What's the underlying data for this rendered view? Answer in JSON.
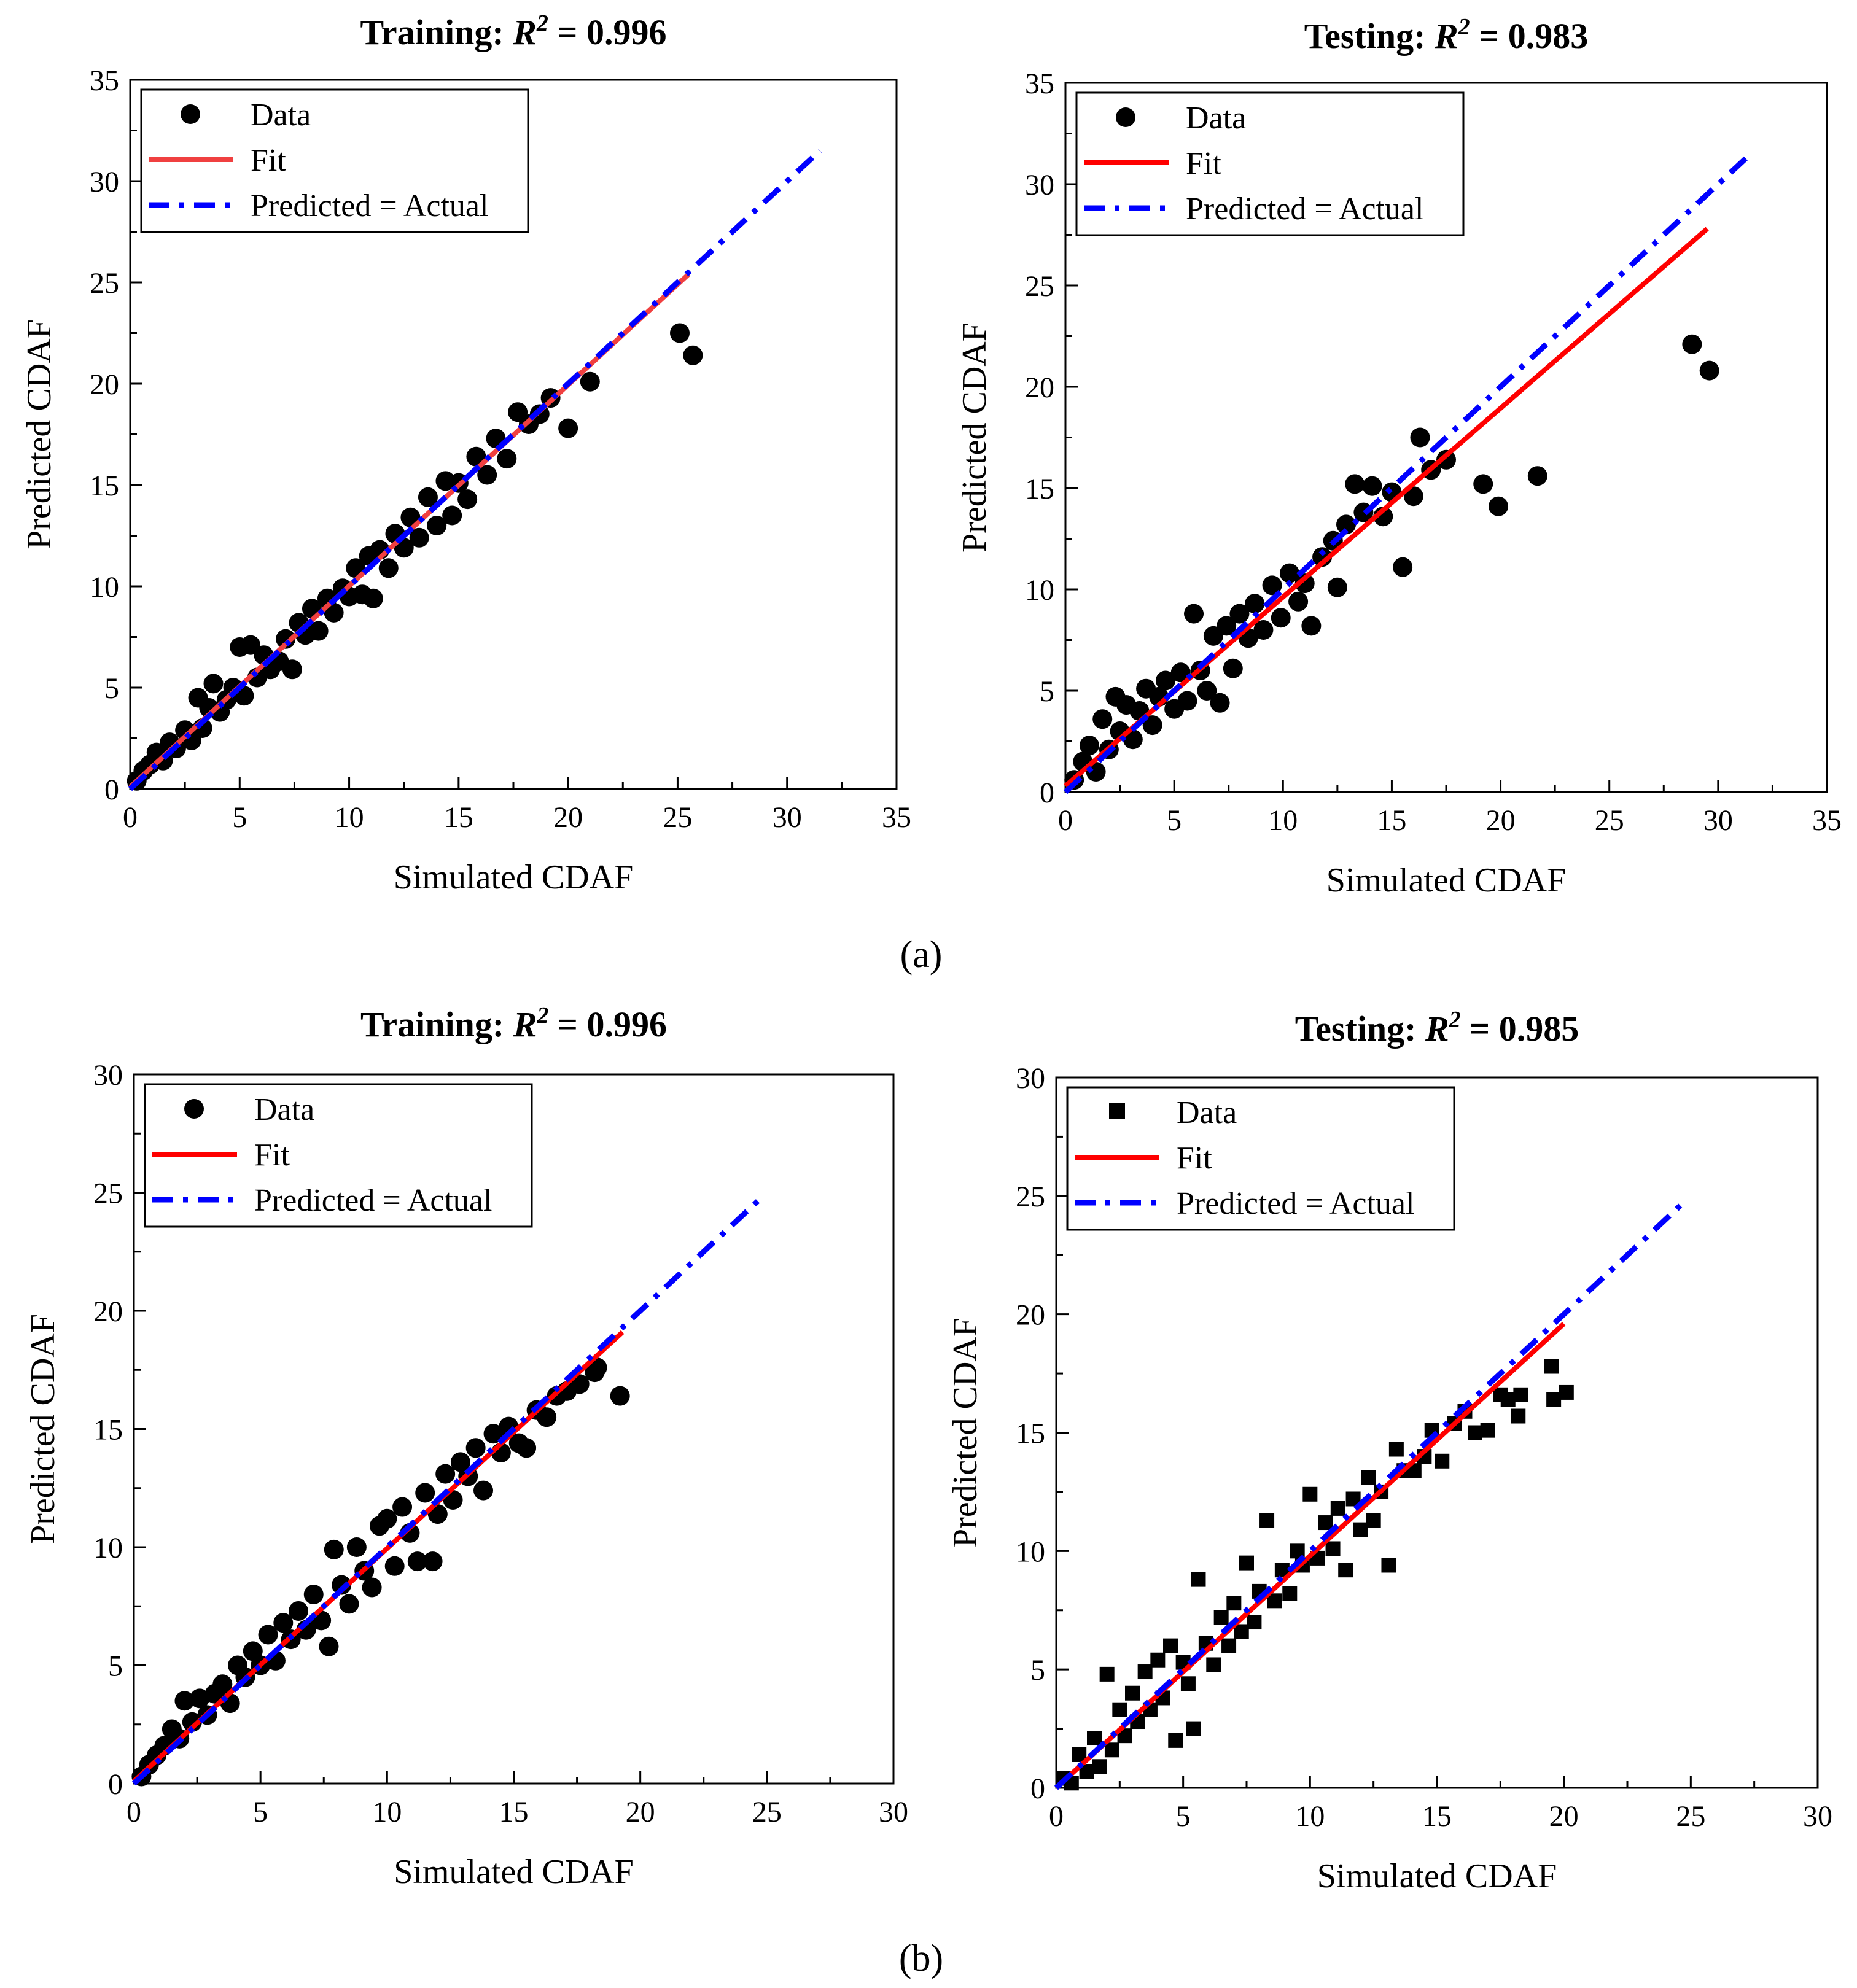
{
  "figure": {
    "panel_labels": [
      "(a)",
      "(b)"
    ],
    "colors": {
      "data": "#000000",
      "fit": "#ff0000",
      "fit_light": "#f04040",
      "ideal": "#0000ff",
      "axis": "#000000"
    }
  },
  "chart_data": [
    {
      "type": "scatter",
      "panel": "a",
      "title_prefix": "Training: ",
      "title_r": "R",
      "title_sup": "2",
      "title_value": " = 0.996",
      "xlabel": "Simulated CDAF",
      "ylabel": "Predicted CDAF",
      "xlim": [
        0,
        35
      ],
      "ylim": [
        0,
        35
      ],
      "xticks": [
        0,
        5,
        10,
        15,
        20,
        25,
        30,
        35
      ],
      "yticks": [
        0,
        5,
        10,
        15,
        20,
        25,
        30,
        35
      ],
      "marker": "circle",
      "legend": {
        "position": "top-left",
        "entries": [
          "Data",
          "Fit",
          "Predicted = Actual"
        ]
      },
      "fit_line": {
        "x": [
          0,
          25.5
        ],
        "y": [
          0.1,
          25.4
        ]
      },
      "ideal_line": {
        "x": [
          0,
          31.5
        ],
        "y": [
          0,
          31.5
        ]
      },
      "points": [
        [
          0.3,
          0.4
        ],
        [
          0.6,
          0.9
        ],
        [
          0.9,
          1.2
        ],
        [
          1.2,
          1.8
        ],
        [
          1.5,
          1.4
        ],
        [
          1.8,
          2.3
        ],
        [
          2.1,
          2.0
        ],
        [
          2.5,
          2.9
        ],
        [
          2.8,
          2.4
        ],
        [
          3.1,
          4.5
        ],
        [
          3.3,
          3.0
        ],
        [
          3.6,
          4.0
        ],
        [
          3.8,
          5.2
        ],
        [
          4.1,
          3.8
        ],
        [
          4.4,
          4.4
        ],
        [
          4.7,
          5.0
        ],
        [
          5.0,
          7.0
        ],
        [
          5.2,
          4.6
        ],
        [
          5.5,
          7.1
        ],
        [
          5.8,
          5.5
        ],
        [
          6.1,
          6.6
        ],
        [
          6.4,
          5.9
        ],
        [
          6.8,
          6.3
        ],
        [
          7.1,
          7.4
        ],
        [
          7.4,
          5.9
        ],
        [
          7.7,
          8.2
        ],
        [
          8.0,
          7.6
        ],
        [
          8.3,
          8.9
        ],
        [
          8.6,
          7.8
        ],
        [
          9.0,
          9.4
        ],
        [
          9.3,
          8.7
        ],
        [
          9.7,
          9.9
        ],
        [
          10.0,
          9.5
        ],
        [
          10.3,
          10.9
        ],
        [
          10.6,
          9.6
        ],
        [
          10.9,
          11.5
        ],
        [
          11.1,
          9.4
        ],
        [
          11.4,
          11.8
        ],
        [
          11.8,
          10.9
        ],
        [
          12.1,
          12.6
        ],
        [
          12.5,
          11.9
        ],
        [
          12.8,
          13.4
        ],
        [
          13.2,
          12.4
        ],
        [
          13.6,
          14.4
        ],
        [
          14.0,
          13.0
        ],
        [
          14.4,
          15.2
        ],
        [
          14.7,
          13.5
        ],
        [
          15.0,
          15.1
        ],
        [
          15.4,
          14.3
        ],
        [
          15.8,
          16.4
        ],
        [
          16.3,
          15.5
        ],
        [
          16.7,
          17.3
        ],
        [
          17.2,
          16.3
        ],
        [
          17.7,
          18.6
        ],
        [
          18.2,
          18.0
        ],
        [
          18.7,
          18.5
        ],
        [
          19.2,
          19.3
        ],
        [
          20.0,
          17.8
        ],
        [
          21.0,
          20.1
        ],
        [
          25.1,
          22.5
        ],
        [
          25.7,
          21.4
        ]
      ]
    },
    {
      "type": "scatter",
      "panel": "a",
      "title_prefix": "Testing: ",
      "title_r": "R",
      "title_sup": "2",
      "title_value": " = 0.983",
      "xlabel": "Simulated CDAF",
      "ylabel": "Predicted CDAF",
      "xlim": [
        0,
        35
      ],
      "ylim": [
        0,
        35
      ],
      "xticks": [
        0,
        5,
        10,
        15,
        20,
        25,
        30,
        35
      ],
      "yticks": [
        0,
        5,
        10,
        15,
        20,
        25,
        30,
        35
      ],
      "marker": "circle",
      "legend": {
        "position": "top-left",
        "entries": [
          "Data",
          "Fit",
          "Predicted = Actual"
        ]
      },
      "fit_line": {
        "x": [
          0,
          29.5
        ],
        "y": [
          0.3,
          27.8
        ]
      },
      "ideal_line": {
        "x": [
          0,
          31.5
        ],
        "y": [
          0,
          31.5
        ]
      },
      "points": [
        [
          0.4,
          0.6
        ],
        [
          0.8,
          1.5
        ],
        [
          1.1,
          2.3
        ],
        [
          1.4,
          1.0
        ],
        [
          1.7,
          3.6
        ],
        [
          2.0,
          2.1
        ],
        [
          2.3,
          4.7
        ],
        [
          2.5,
          3.0
        ],
        [
          2.8,
          4.3
        ],
        [
          3.1,
          2.6
        ],
        [
          3.4,
          4.0
        ],
        [
          3.7,
          5.1
        ],
        [
          4.0,
          3.3
        ],
        [
          4.3,
          4.7
        ],
        [
          4.6,
          5.5
        ],
        [
          5.0,
          4.1
        ],
        [
          5.3,
          5.9
        ],
        [
          5.6,
          4.5
        ],
        [
          5.9,
          8.8
        ],
        [
          6.2,
          6.0
        ],
        [
          6.5,
          5.0
        ],
        [
          6.8,
          7.7
        ],
        [
          7.1,
          4.4
        ],
        [
          7.4,
          8.2
        ],
        [
          7.7,
          6.1
        ],
        [
          8.0,
          8.8
        ],
        [
          8.4,
          7.6
        ],
        [
          8.7,
          9.3
        ],
        [
          9.1,
          8.0
        ],
        [
          9.5,
          10.2
        ],
        [
          9.9,
          8.6
        ],
        [
          10.3,
          10.8
        ],
        [
          10.7,
          9.4
        ],
        [
          11.0,
          10.3
        ],
        [
          11.3,
          8.2
        ],
        [
          11.8,
          11.6
        ],
        [
          12.3,
          12.4
        ],
        [
          12.5,
          10.1
        ],
        [
          12.9,
          13.2
        ],
        [
          13.3,
          15.2
        ],
        [
          13.7,
          13.8
        ],
        [
          14.1,
          15.1
        ],
        [
          14.6,
          13.6
        ],
        [
          15.0,
          14.8
        ],
        [
          15.5,
          11.1
        ],
        [
          16.0,
          14.6
        ],
        [
          16.3,
          17.5
        ],
        [
          16.8,
          15.9
        ],
        [
          17.5,
          16.4
        ],
        [
          19.2,
          15.2
        ],
        [
          19.9,
          14.1
        ],
        [
          21.7,
          15.6
        ],
        [
          28.8,
          22.1
        ],
        [
          29.6,
          20.8
        ]
      ]
    },
    {
      "type": "scatter",
      "panel": "b",
      "title_prefix": "Training: ",
      "title_r": "R",
      "title_sup": "2",
      "title_value": " = 0.996",
      "xlabel": "Simulated CDAF",
      "ylabel": "Predicted CDAF",
      "xlim": [
        0,
        30
      ],
      "ylim": [
        0,
        30
      ],
      "xticks": [
        0,
        5,
        10,
        15,
        20,
        25,
        30
      ],
      "yticks": [
        0,
        5,
        10,
        15,
        20,
        25,
        30
      ],
      "marker": "circle",
      "legend": {
        "position": "top-left",
        "entries": [
          "Data",
          "Fit",
          "Predicted = Actual"
        ]
      },
      "fit_line": {
        "x": [
          0,
          19.3
        ],
        "y": [
          0.1,
          19.1
        ]
      },
      "ideal_line": {
        "x": [
          0,
          24.8
        ],
        "y": [
          0,
          24.8
        ]
      },
      "points": [
        [
          0.3,
          0.3
        ],
        [
          0.6,
          0.8
        ],
        [
          0.9,
          1.2
        ],
        [
          1.2,
          1.6
        ],
        [
          1.5,
          2.3
        ],
        [
          1.8,
          1.9
        ],
        [
          2.0,
          3.5
        ],
        [
          2.3,
          2.6
        ],
        [
          2.6,
          3.6
        ],
        [
          2.9,
          2.9
        ],
        [
          3.2,
          3.8
        ],
        [
          3.5,
          4.2
        ],
        [
          3.8,
          3.4
        ],
        [
          4.1,
          5.0
        ],
        [
          4.4,
          4.5
        ],
        [
          4.7,
          5.6
        ],
        [
          5.0,
          5.0
        ],
        [
          5.3,
          6.3
        ],
        [
          5.6,
          5.2
        ],
        [
          5.9,
          6.8
        ],
        [
          6.2,
          6.1
        ],
        [
          6.5,
          7.3
        ],
        [
          6.8,
          6.5
        ],
        [
          7.1,
          8.0
        ],
        [
          7.4,
          6.9
        ],
        [
          7.7,
          5.8
        ],
        [
          7.9,
          9.9
        ],
        [
          8.2,
          8.4
        ],
        [
          8.5,
          7.6
        ],
        [
          8.8,
          10.0
        ],
        [
          9.1,
          9.0
        ],
        [
          9.4,
          8.3
        ],
        [
          9.7,
          10.9
        ],
        [
          10.0,
          11.2
        ],
        [
          10.3,
          9.2
        ],
        [
          10.6,
          11.7
        ],
        [
          10.9,
          10.6
        ],
        [
          11.2,
          9.4
        ],
        [
          11.5,
          12.3
        ],
        [
          11.8,
          9.4
        ],
        [
          12.0,
          11.4
        ],
        [
          12.3,
          13.1
        ],
        [
          12.6,
          12.0
        ],
        [
          12.9,
          13.6
        ],
        [
          13.2,
          13.0
        ],
        [
          13.5,
          14.2
        ],
        [
          13.8,
          12.4
        ],
        [
          14.2,
          14.8
        ],
        [
          14.5,
          14.0
        ],
        [
          14.8,
          15.1
        ],
        [
          15.2,
          14.4
        ],
        [
          15.5,
          14.2
        ],
        [
          15.9,
          15.8
        ],
        [
          16.3,
          15.5
        ],
        [
          16.7,
          16.4
        ],
        [
          17.1,
          16.6
        ],
        [
          17.6,
          16.9
        ],
        [
          18.2,
          17.4
        ],
        [
          18.3,
          17.6
        ],
        [
          19.2,
          16.4
        ]
      ]
    },
    {
      "type": "scatter",
      "panel": "b",
      "title_prefix": "Testing: ",
      "title_r": "R",
      "title_sup": "2",
      "title_value": " = 0.985",
      "xlabel": "Simulated CDAF",
      "ylabel": "Predicted CDAF",
      "xlim": [
        0,
        30
      ],
      "ylim": [
        0,
        30
      ],
      "xticks": [
        0,
        5,
        10,
        15,
        20,
        25,
        30
      ],
      "yticks": [
        0,
        5,
        10,
        15,
        20,
        25,
        30
      ],
      "marker": "square",
      "legend": {
        "position": "top-left",
        "entries": [
          "Data",
          "Fit",
          "Predicted = Actual"
        ]
      },
      "fit_line": {
        "x": [
          0,
          20.0
        ],
        "y": [
          0.0,
          19.6
        ]
      },
      "ideal_line": {
        "x": [
          0,
          24.8
        ],
        "y": [
          0,
          24.8
        ]
      },
      "points": [
        [
          0.3,
          0.4
        ],
        [
          0.6,
          0.2
        ],
        [
          0.9,
          1.4
        ],
        [
          1.2,
          0.7
        ],
        [
          1.5,
          2.1
        ],
        [
          1.7,
          0.9
        ],
        [
          2.0,
          4.8
        ],
        [
          2.2,
          1.6
        ],
        [
          2.5,
          3.3
        ],
        [
          2.7,
          2.2
        ],
        [
          3.0,
          4.0
        ],
        [
          3.2,
          2.8
        ],
        [
          3.5,
          4.9
        ],
        [
          3.7,
          3.3
        ],
        [
          4.0,
          5.4
        ],
        [
          4.2,
          3.8
        ],
        [
          4.5,
          6.0
        ],
        [
          4.7,
          2.0
        ],
        [
          5.0,
          5.3
        ],
        [
          5.2,
          4.4
        ],
        [
          5.4,
          2.5
        ],
        [
          5.6,
          8.8
        ],
        [
          5.9,
          6.1
        ],
        [
          6.2,
          5.2
        ],
        [
          6.5,
          7.2
        ],
        [
          6.8,
          6.0
        ],
        [
          7.0,
          7.8
        ],
        [
          7.3,
          6.6
        ],
        [
          7.5,
          9.5
        ],
        [
          7.8,
          7.0
        ],
        [
          8.0,
          8.3
        ],
        [
          8.3,
          11.3
        ],
        [
          8.6,
          7.9
        ],
        [
          8.9,
          9.2
        ],
        [
          9.2,
          8.2
        ],
        [
          9.5,
          10.0
        ],
        [
          9.7,
          9.4
        ],
        [
          10.0,
          12.4
        ],
        [
          10.3,
          9.7
        ],
        [
          10.6,
          11.2
        ],
        [
          10.9,
          10.1
        ],
        [
          11.1,
          11.8
        ],
        [
          11.4,
          9.2
        ],
        [
          11.7,
          12.2
        ],
        [
          12.0,
          10.9
        ],
        [
          12.3,
          13.1
        ],
        [
          12.5,
          11.3
        ],
        [
          12.8,
          12.5
        ],
        [
          13.1,
          9.4
        ],
        [
          13.4,
          14.3
        ],
        [
          13.7,
          13.4
        ],
        [
          14.1,
          13.4
        ],
        [
          14.5,
          14.0
        ],
        [
          14.8,
          15.1
        ],
        [
          15.2,
          13.8
        ],
        [
          15.7,
          15.4
        ],
        [
          16.1,
          15.9
        ],
        [
          16.5,
          15.0
        ],
        [
          17.0,
          15.1
        ],
        [
          17.5,
          16.6
        ],
        [
          17.8,
          16.4
        ],
        [
          18.2,
          15.7
        ],
        [
          18.3,
          16.6
        ],
        [
          19.5,
          17.8
        ],
        [
          19.6,
          16.4
        ],
        [
          20.1,
          16.7
        ]
      ]
    }
  ]
}
